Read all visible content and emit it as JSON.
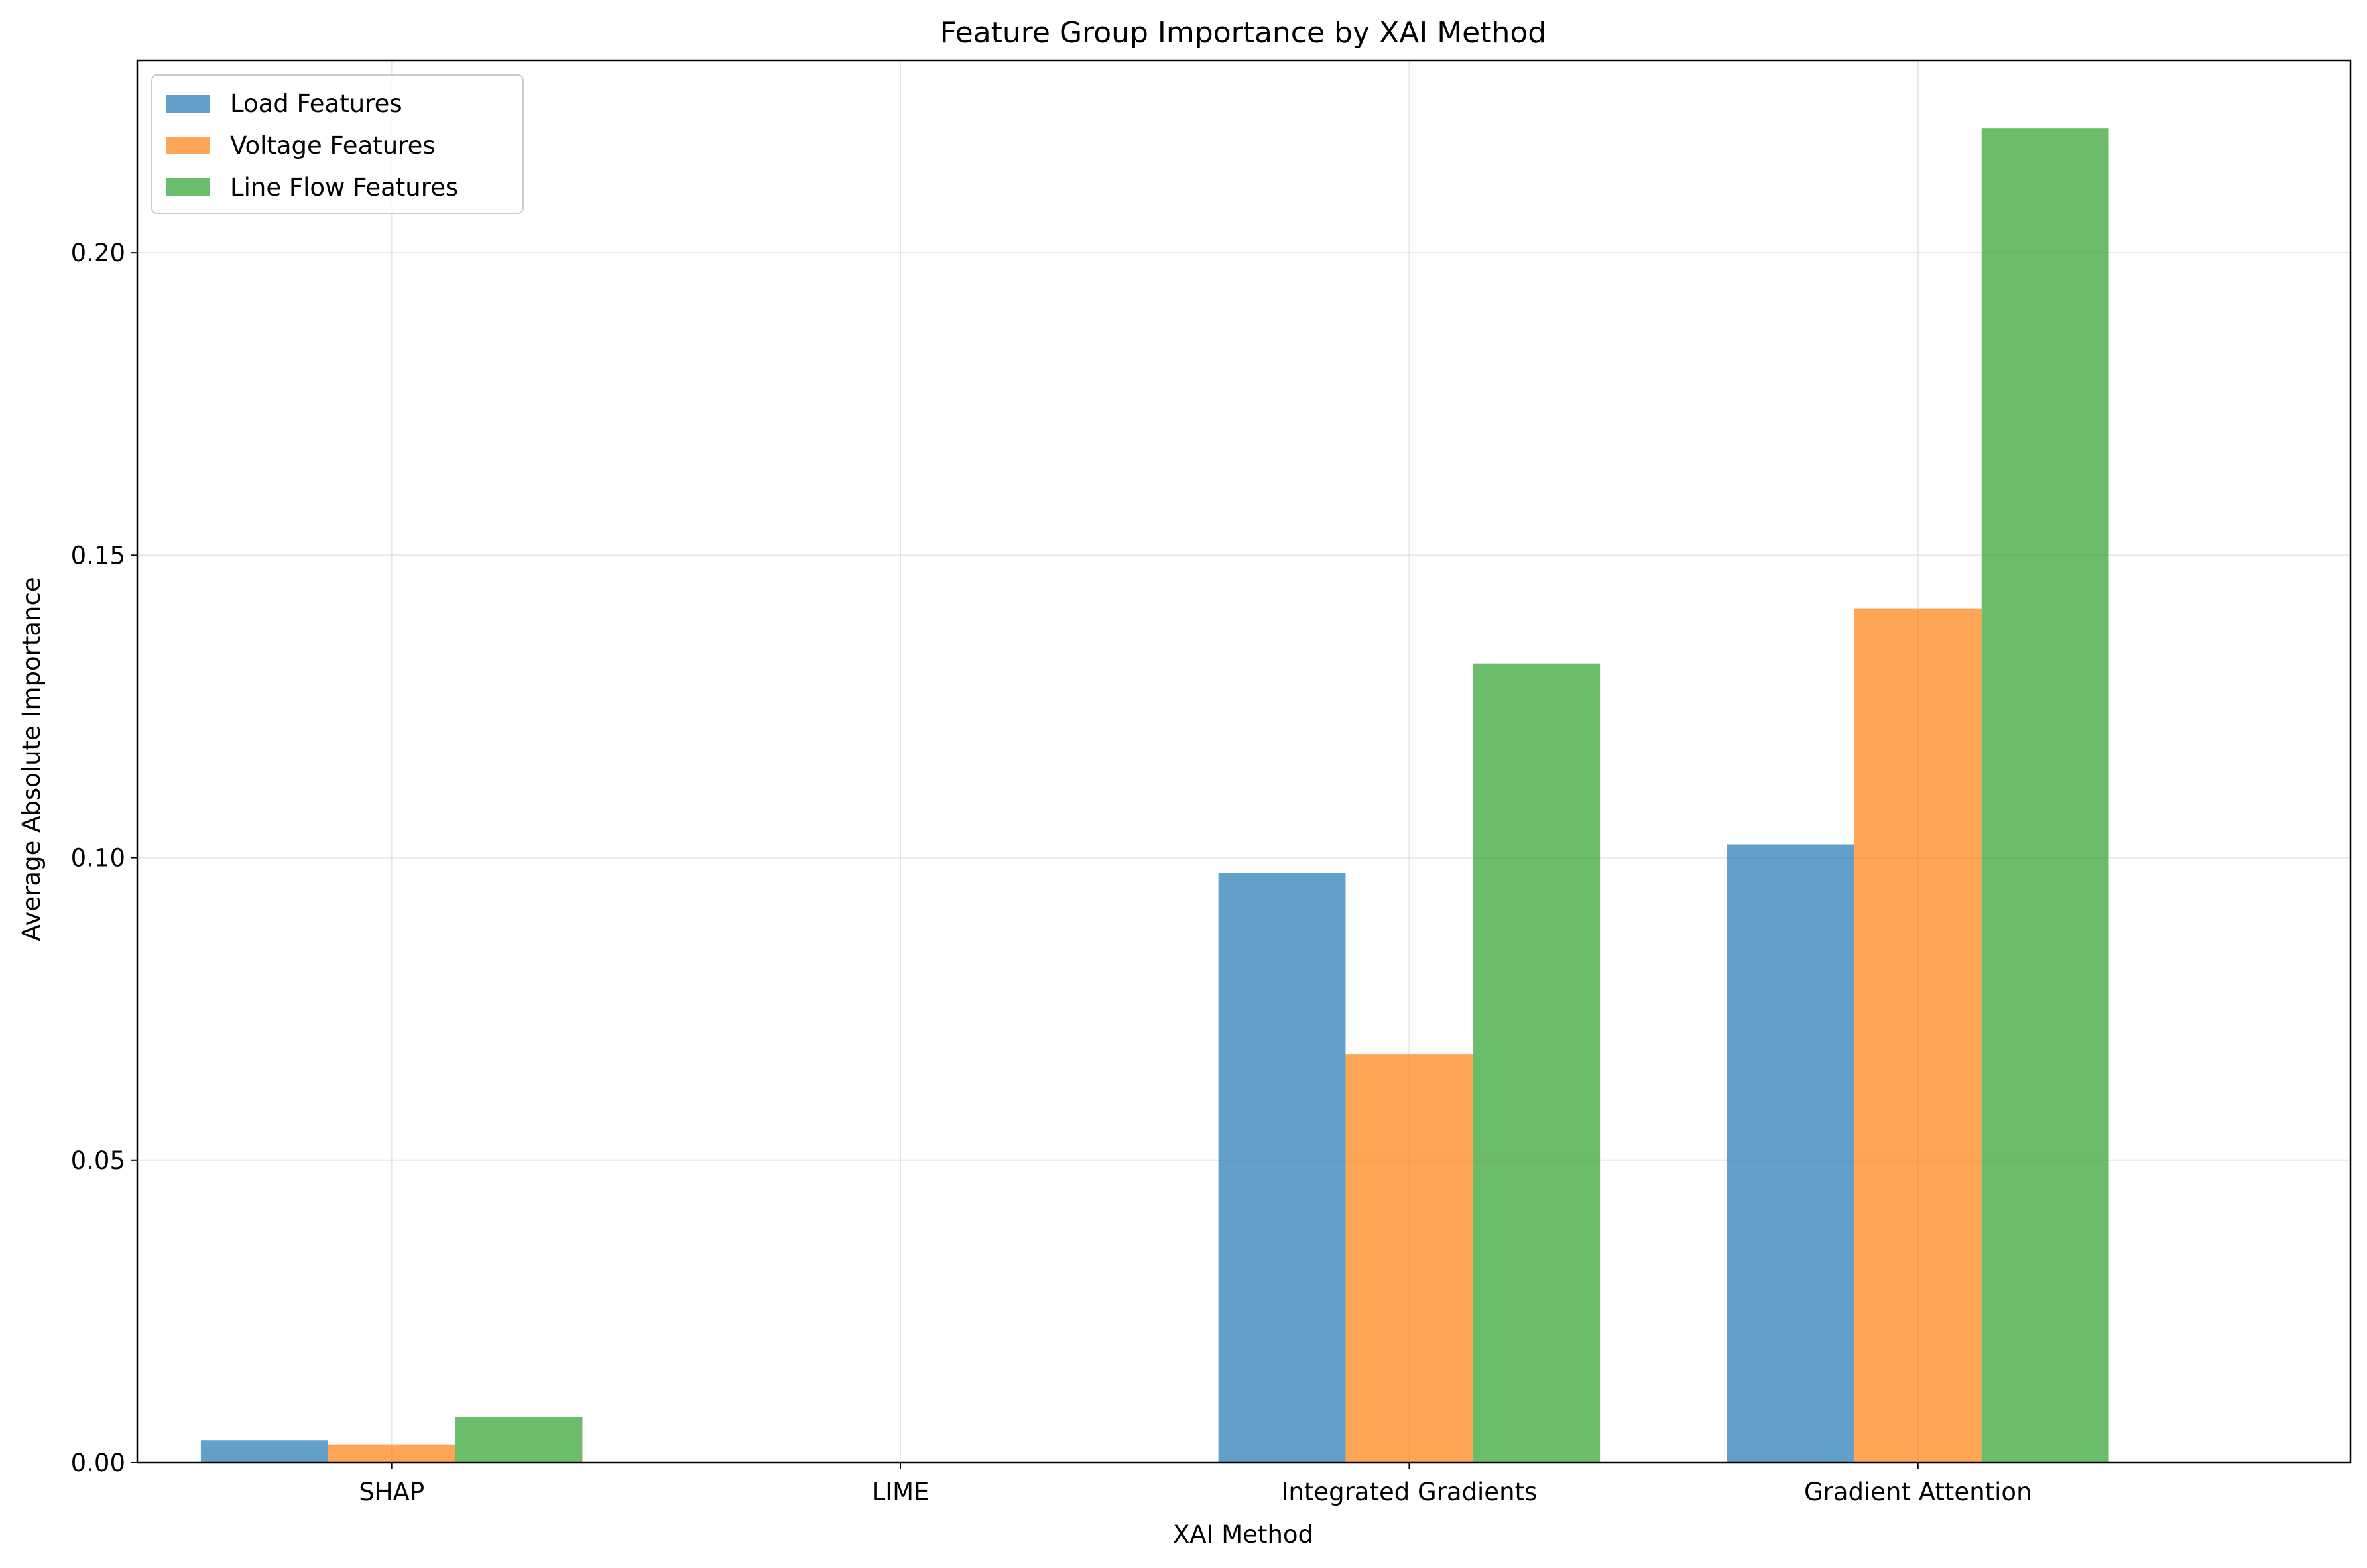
{
  "chart_data": {
    "type": "bar",
    "title": "Feature Group Importance by XAI Method",
    "xlabel": "XAI Method",
    "ylabel": "Average Absolute Importance",
    "categories": [
      "SHAP",
      "LIME",
      "Integrated Gradients",
      "Gradient Attention"
    ],
    "series": [
      {
        "name": "Load Features",
        "color": "#1f77b4",
        "values": [
          0.0037,
          0.0,
          0.0975,
          0.1022
        ]
      },
      {
        "name": "Voltage Features",
        "color": "#ff7f0e",
        "values": [
          0.003,
          0.0,
          0.0675,
          0.1412
        ]
      },
      {
        "name": "Line Flow Features",
        "color": "#2ca02c",
        "values": [
          0.0075,
          0.0,
          0.1321,
          0.2206
        ]
      }
    ],
    "ylim": [
      0,
      0.2318
    ],
    "yticks": [
      0.0,
      0.05,
      0.1,
      0.15,
      0.2
    ],
    "ytick_labels": [
      "0.00",
      "0.05",
      "0.10",
      "0.15",
      "0.20"
    ],
    "bar_opacity": 0.7,
    "grid": true,
    "legend_position": "upper-left"
  }
}
